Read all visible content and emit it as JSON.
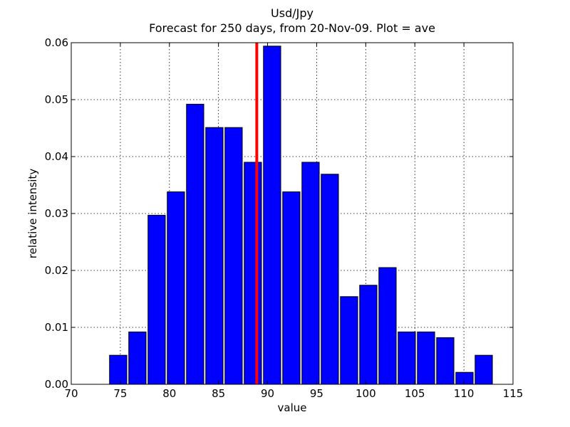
{
  "chart_data": {
    "type": "bar",
    "title": "Usd/Jpy",
    "subtitle": "Forecast for 250 days, from 20-Nov-09. Plot = ave",
    "xlabel": "value",
    "ylabel": "relative intensity",
    "xlim": [
      70,
      115
    ],
    "ylim": [
      0,
      0.06
    ],
    "x_ticks": [
      70,
      75,
      80,
      85,
      90,
      95,
      100,
      105,
      110,
      115
    ],
    "x_tick_labels": [
      "70",
      "75",
      "80",
      "85",
      "90",
      "95",
      "100",
      "105",
      "110",
      "115"
    ],
    "y_ticks": [
      0,
      0.01,
      0.02,
      0.03,
      0.04,
      0.05,
      0.06
    ],
    "y_tick_labels": [
      "0.00",
      "0.01",
      "0.02",
      "0.03",
      "0.04",
      "0.05",
      "0.06"
    ],
    "grid": true,
    "bar_color": "#0000ff",
    "marker_color": "#ff0000",
    "bin_width": 1.96,
    "bar_width": 1.76,
    "bins": [
      {
        "start": 73.9,
        "value": 0.0051
      },
      {
        "start": 75.86,
        "value": 0.0092
      },
      {
        "start": 77.82,
        "value": 0.0297
      },
      {
        "start": 79.78,
        "value": 0.0338
      },
      {
        "start": 81.74,
        "value": 0.0492
      },
      {
        "start": 83.7,
        "value": 0.0451
      },
      {
        "start": 85.66,
        "value": 0.0451
      },
      {
        "start": 87.62,
        "value": 0.039
      },
      {
        "start": 89.58,
        "value": 0.0594
      },
      {
        "start": 91.54,
        "value": 0.0338
      },
      {
        "start": 93.5,
        "value": 0.039
      },
      {
        "start": 95.46,
        "value": 0.0369
      },
      {
        "start": 97.42,
        "value": 0.0154
      },
      {
        "start": 99.38,
        "value": 0.0174
      },
      {
        "start": 101.34,
        "value": 0.0205
      },
      {
        "start": 103.3,
        "value": 0.0092
      },
      {
        "start": 105.26,
        "value": 0.0092
      },
      {
        "start": 107.22,
        "value": 0.0082
      },
      {
        "start": 109.18,
        "value": 0.0021
      },
      {
        "start": 111.14,
        "value": 0.0051
      }
    ],
    "marker_line_x": 88.9
  }
}
